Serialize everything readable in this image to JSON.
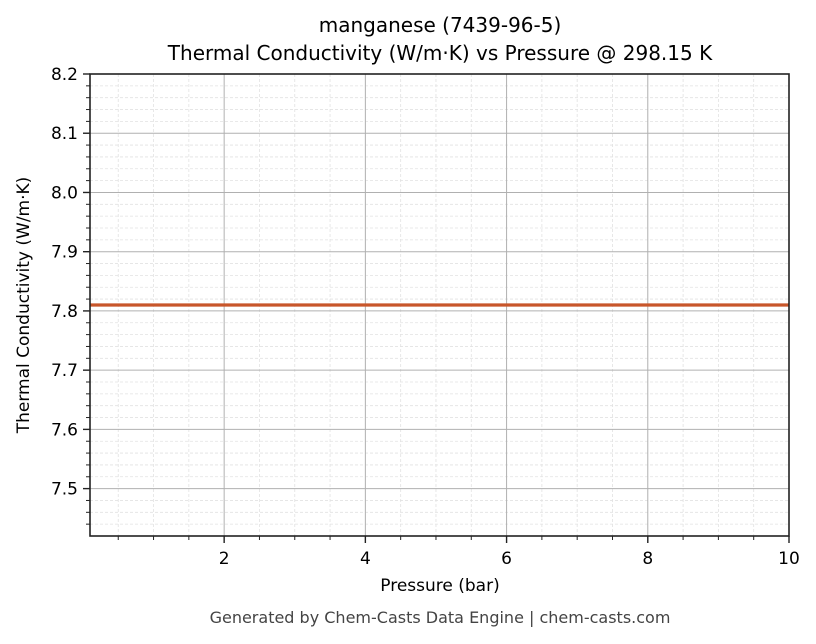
{
  "chart_data": {
    "type": "line",
    "title": "manganese (7439-96-5)",
    "subtitle": "Thermal Conductivity (W/m·K) vs Pressure @ 298.15 K",
    "xlabel": "Pressure (bar)",
    "ylabel": "Thermal Conductivity (W/m·K)",
    "xlim": [
      0.1,
      10
    ],
    "ylim": [
      7.42,
      8.2
    ],
    "xticks": [
      2,
      4,
      6,
      8,
      10
    ],
    "xtick_labels": [
      "2",
      "4",
      "6",
      "8",
      "10"
    ],
    "yticks": [
      7.5,
      7.6,
      7.7,
      7.8,
      7.9,
      8.0,
      8.1,
      8.2
    ],
    "ytick_labels": [
      "7.5",
      "7.6",
      "7.7",
      "7.8",
      "7.9",
      "8.0",
      "8.1",
      "8.2"
    ],
    "grid": true,
    "minor_grid": true,
    "legend": null,
    "series": [
      {
        "name": "manganese",
        "color": "#c8562a",
        "x": [
          0.1,
          1,
          2,
          3,
          4,
          5,
          6,
          7,
          8,
          9,
          10
        ],
        "values": [
          7.81,
          7.81,
          7.81,
          7.81,
          7.81,
          7.81,
          7.81,
          7.81,
          7.81,
          7.81,
          7.81
        ]
      }
    ]
  },
  "footer": "Generated by Chem-Casts Data Engine | chem-casts.com"
}
